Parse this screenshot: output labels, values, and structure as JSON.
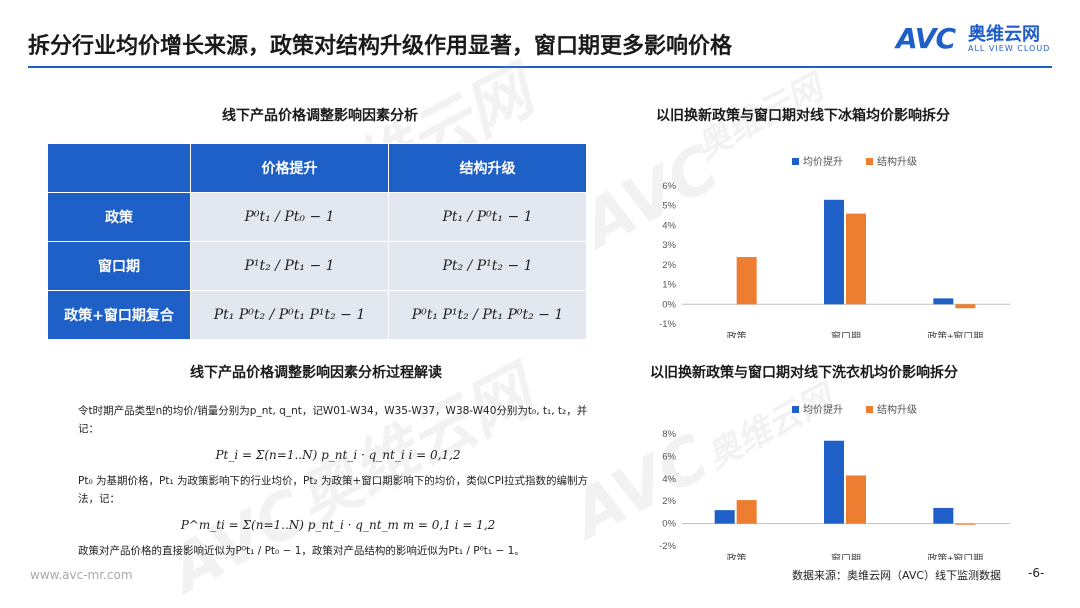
{
  "page": {
    "title": "拆分行业均价增长来源，政策对结构升级作用显著，窗口期更多影响价格",
    "logo": {
      "mark": "AVC",
      "cn": "奥维云网",
      "en": "ALL VIEW CLOUD"
    },
    "watermark": {
      "mark": "AVC",
      "cn": "奥维云网",
      "en": "ALL VIEW CLOUD"
    },
    "footer": {
      "url": "www.avc-mr.com",
      "source": "数据来源：奥维云网（AVC）线下监测数据",
      "page": "-6-"
    }
  },
  "factor_table": {
    "title": "线下产品价格调整影响因素分析",
    "headers": [
      "",
      "价格提升",
      "结构升级"
    ],
    "rows": [
      {
        "label": "政策",
        "price": "P⁰t₁ / Pt₀ − 1",
        "structure": "Pt₁ / P⁰t₁ − 1"
      },
      {
        "label": "窗口期",
        "price": "P¹t₂ / Pt₁ − 1",
        "structure": "Pt₂ / P¹t₂ − 1"
      },
      {
        "label": "政策+窗口期复合",
        "price": "Pt₁ P⁰t₂ / P⁰t₁ P¹t₂ − 1",
        "structure": "P⁰t₁ P¹t₂ / Pt₁ P⁰t₂ − 1"
      }
    ]
  },
  "explanation": {
    "title": "线下产品价格调整影响因素分析过程解读",
    "line1": "令t时期产品类型n的均价/销量分别为p_nt, q_nt，记W01-W34，W35-W37，W38-W40分别为t₀, t₁, t₂，并记：",
    "formula1": "Pt_i = Σ(n=1..N) p_nt_i · q_nt_i      i = 0,1,2",
    "line2": "Pt₀ 为基期价格，Pt₁ 为政策影响下的行业均价，Pt₂ 为政策+窗口期影响下的均价，类似CPI拉式指数的编制方法，记：",
    "formula2": "P^m_ti = Σ(n=1..N) p_nt_i · q_nt_m      m = 0,1   i = 1,2",
    "line3": "政策对产品价格的直接影响近似为P⁰t₁ / Pt₀ − 1，政策对产品结构的影响近似为Pt₁ / P⁰t₁ − 1。"
  },
  "chart_data": [
    {
      "type": "bar",
      "title": "以旧换新政策与窗口期对线下冰箱均价影响拆分",
      "categories": [
        "政策",
        "窗口期",
        "政策+窗口期"
      ],
      "series": [
        {
          "name": "均价提升",
          "values": [
            0,
            5.3,
            0.3
          ],
          "color": "#1f5fc8"
        },
        {
          "name": "结构升级",
          "values": [
            2.4,
            4.6,
            -0.2
          ],
          "color": "#ed7d31"
        }
      ],
      "yticks": [
        "6%",
        "5%",
        "4%",
        "3%",
        "2%",
        "1%",
        "0%",
        "-1%"
      ],
      "ylim": [
        -1,
        6
      ],
      "unit": "%",
      "legend": "top",
      "grid": false
    },
    {
      "type": "bar",
      "title": "以旧换新政策与窗口期对线下洗衣机均价影响拆分",
      "categories": [
        "政策",
        "窗口期",
        "政策+窗口期"
      ],
      "series": [
        {
          "name": "均价提升",
          "values": [
            1.2,
            7.4,
            1.4
          ],
          "color": "#1f5fc8"
        },
        {
          "name": "结构升级",
          "values": [
            2.1,
            4.3,
            -0.1
          ],
          "color": "#ed7d31"
        }
      ],
      "yticks": [
        "8%",
        "6%",
        "4%",
        "2%",
        "0%",
        "-2%"
      ],
      "ylim": [
        -2,
        8
      ],
      "unit": "%",
      "legend": "top",
      "grid": false
    }
  ]
}
